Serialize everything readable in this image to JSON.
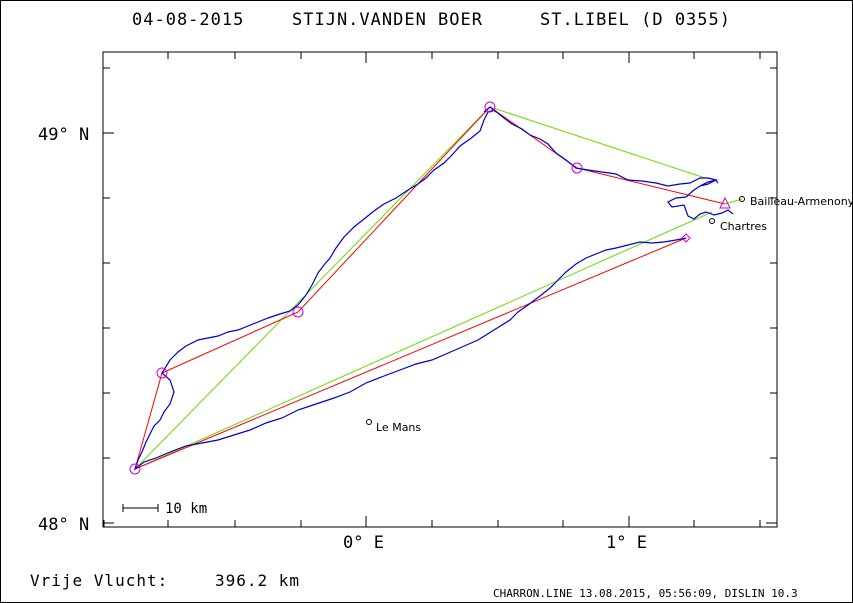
{
  "header": {
    "date": "04-08-2015",
    "pilot": "STIJN.VANDEN BOER",
    "glider": "ST.LIBEL (D 0355)"
  },
  "axes": {
    "lat_labels": [
      "49° N",
      "48° N"
    ],
    "lon_labels": [
      "0° E",
      "1° E"
    ],
    "lat_range": [
      48.0,
      49.0
    ],
    "lon_range": [
      0.0,
      1.0
    ]
  },
  "scale_bar": {
    "label": "10 km"
  },
  "places": [
    {
      "name": "Bailleau-Armenonville",
      "label": "Bailleau-Armenony"
    },
    {
      "name": "Chartres",
      "label": "Chartres"
    },
    {
      "name": "Le Mans",
      "label": "Le Mans"
    }
  ],
  "result": {
    "label": "Vrije Vlucht:",
    "value": "396.2 km"
  },
  "footer": {
    "text": "CHARRON.LINE 13.08.2015, 05:56:09, DISLIN 10.3"
  },
  "colors": {
    "track": "#0000cc",
    "task": "#ff0000",
    "flight": "#66dd00",
    "turnpoint": "#cc00cc",
    "frame": "#000000"
  }
}
